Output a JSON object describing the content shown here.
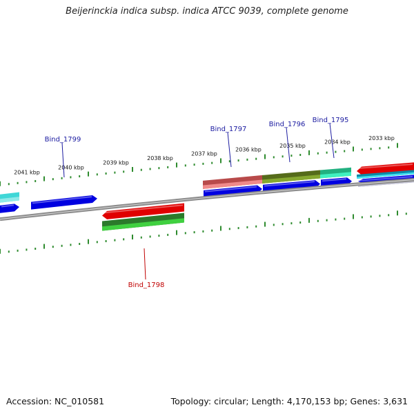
{
  "title": "Beijerinckia indica subsp. indica ATCC 9039, complete genome",
  "footer": {
    "accession": "Accession: NC_010581",
    "summary": "Topology: circular; Length: 4,170,153 bp; Genes: 3,631"
  },
  "colors": {
    "backbone": "#8a8a8a",
    "tick": "#2e8b2e",
    "blue_gene": "#0000e0",
    "red_gene": "#e00000",
    "label_blue": "#1a1aa0",
    "label_red": "#c00000"
  },
  "ticks": [
    {
      "label": "2041 kbp"
    },
    {
      "label": "2040 kbp"
    },
    {
      "label": "2039 kbp"
    },
    {
      "label": "2038 kbp"
    },
    {
      "label": "2037 kbp"
    },
    {
      "label": "2036 kbp"
    },
    {
      "label": "2035 kbp"
    },
    {
      "label": "2034 kbp"
    },
    {
      "label": "2033 kbp"
    }
  ],
  "gene_labels": [
    {
      "text": "Bind_1799",
      "strand": "forward"
    },
    {
      "text": "Bind_1797",
      "strand": "forward"
    },
    {
      "text": "Bind_1796",
      "strand": "forward"
    },
    {
      "text": "Bind_1795",
      "strand": "forward"
    },
    {
      "text": "Bind_1798",
      "strand": "reverse"
    }
  ]
}
